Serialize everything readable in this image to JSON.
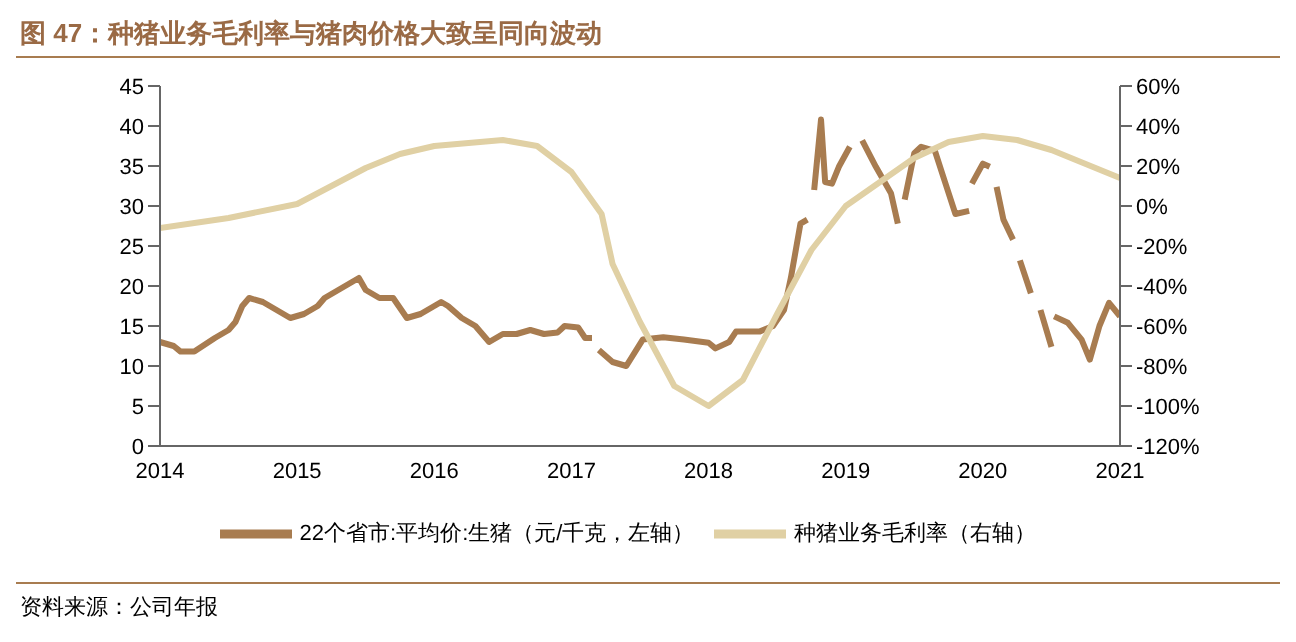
{
  "chart_data": {
    "type": "line",
    "title": "图 47：种猪业务毛利率与猪肉价格大致呈同向波动",
    "annotations": [
      "资料来源：公司年报"
    ],
    "xlim": [
      2014,
      2021
    ],
    "xticks": [
      2014,
      2015,
      2016,
      2017,
      2018,
      2019,
      2020,
      2021
    ],
    "ylim": [
      0,
      45
    ],
    "yticks": [
      0,
      5,
      10,
      15,
      20,
      25,
      30,
      35,
      40,
      45
    ],
    "y2lim": [
      -120,
      60
    ],
    "y2ticks": [
      {
        "value": -120,
        "label": "-120%"
      },
      {
        "value": -100,
        "label": "-100%"
      },
      {
        "value": -80,
        "label": "-80%"
      },
      {
        "value": -60,
        "label": "-60%"
      },
      {
        "value": -40,
        "label": "-40%"
      },
      {
        "value": -20,
        "label": "-20%"
      },
      {
        "value": 0,
        "label": "0%"
      },
      {
        "value": 20,
        "label": "20%"
      },
      {
        "value": 40,
        "label": "40%"
      },
      {
        "value": 60,
        "label": "60%"
      }
    ],
    "grid": false,
    "legend": "bottom",
    "marker": "none",
    "line_style": "solid",
    "series": [
      {
        "name": "22个省市:平均价:生猪（元/千克，左轴）",
        "color": "#a87c50",
        "x": [
          2014,
          2014.1,
          2014.15,
          2014.25,
          2014.4,
          2014.5,
          2014.55,
          2014.6,
          2014.65,
          2014.75,
          2014.85,
          2014.95,
          2015.05,
          2015.15,
          2015.2,
          2015.3,
          2015.4,
          2015.45,
          2015.5,
          2015.6,
          2015.7,
          2015.8,
          2015.9,
          2016,
          2016.05,
          2016.1,
          2016.2,
          2016.3,
          2016.4,
          2016.5,
          2016.6,
          2016.7,
          2016.8,
          2016.9,
          2016.95,
          2017.05,
          2017.1,
          2017.15,
          2017.17,
          2017.2,
          2017.3,
          2017.4,
          2017.52,
          2017.67,
          2017.82,
          2018,
          2018.05,
          2018.15,
          2018.2,
          2018.37,
          2018.47,
          2018.55,
          2018.6,
          2018.67,
          2018.72,
          2018.75,
          2018.77,
          2018.82,
          2018.85,
          2018.9,
          2018.95,
          2019.03,
          2019.08,
          2019.12,
          2019.22,
          2019.33,
          2019.38,
          2019.4,
          2019.43,
          2019.5,
          2019.55,
          2019.65,
          2019.72,
          2019.8,
          2019.9,
          2019.91,
          2019.92,
          2020,
          2020.05,
          2020.07,
          2020.1,
          2020.15,
          2020.22,
          2020.25,
          2020.27,
          2020.35,
          2020.38,
          2020.42,
          2020.5,
          2020.51,
          2020.52,
          2020.62,
          2020.72,
          2020.78,
          2020.85,
          2020.92,
          2021
        ],
        "values": [
          13,
          12.5,
          11.8,
          11.8,
          13.5,
          14.5,
          15.5,
          17.5,
          18.5,
          18,
          17,
          16,
          16.5,
          17.5,
          18.5,
          19.5,
          20.5,
          21,
          19.5,
          18.5,
          18.5,
          16,
          16.5,
          17.5,
          18,
          17.5,
          16,
          15,
          13,
          14,
          14,
          14.5,
          14,
          14.2,
          15,
          14.8,
          13.5,
          13.5,
          null,
          12,
          10.5,
          10,
          13.3,
          13.6,
          13.3,
          12.9,
          12.2,
          13,
          14.3,
          14.3,
          15,
          17,
          21,
          27.8,
          28.3,
          null,
          32,
          40.8,
          33,
          32.8,
          34.9,
          37.4,
          null,
          38.2,
          34.9,
          31.6,
          27.8,
          null,
          30.8,
          36.6,
          37.4,
          36.9,
          33.2,
          29,
          29.4,
          null,
          32.8,
          35.3,
          34.9,
          null,
          32.4,
          28.3,
          25.8,
          null,
          23.2,
          19.1,
          null,
          17,
          12.4,
          null,
          16.2,
          15.4,
          13.3,
          10.8,
          15,
          17.9,
          16.2
        ]
      },
      {
        "name": "种猪业务毛利率（右轴）",
        "color": "#e0d0a4",
        "axis": "y2",
        "x": [
          2014,
          2014.5,
          2015,
          2015.5,
          2015.75,
          2016,
          2016.5,
          2016.75,
          2017,
          2017.22,
          2017.3,
          2017.5,
          2017.75,
          2018,
          2018.25,
          2018.5,
          2018.75,
          2019,
          2019.25,
          2019.5,
          2019.75,
          2020,
          2020.25,
          2020.5,
          2020.75,
          2021
        ],
        "values": [
          -11,
          -6,
          1,
          19,
          26,
          30,
          33,
          30,
          17,
          -4,
          -29,
          -58,
          -90,
          -100,
          -87,
          -54,
          -22,
          0,
          12,
          24,
          32,
          35,
          33,
          28,
          21,
          14
        ]
      }
    ]
  }
}
